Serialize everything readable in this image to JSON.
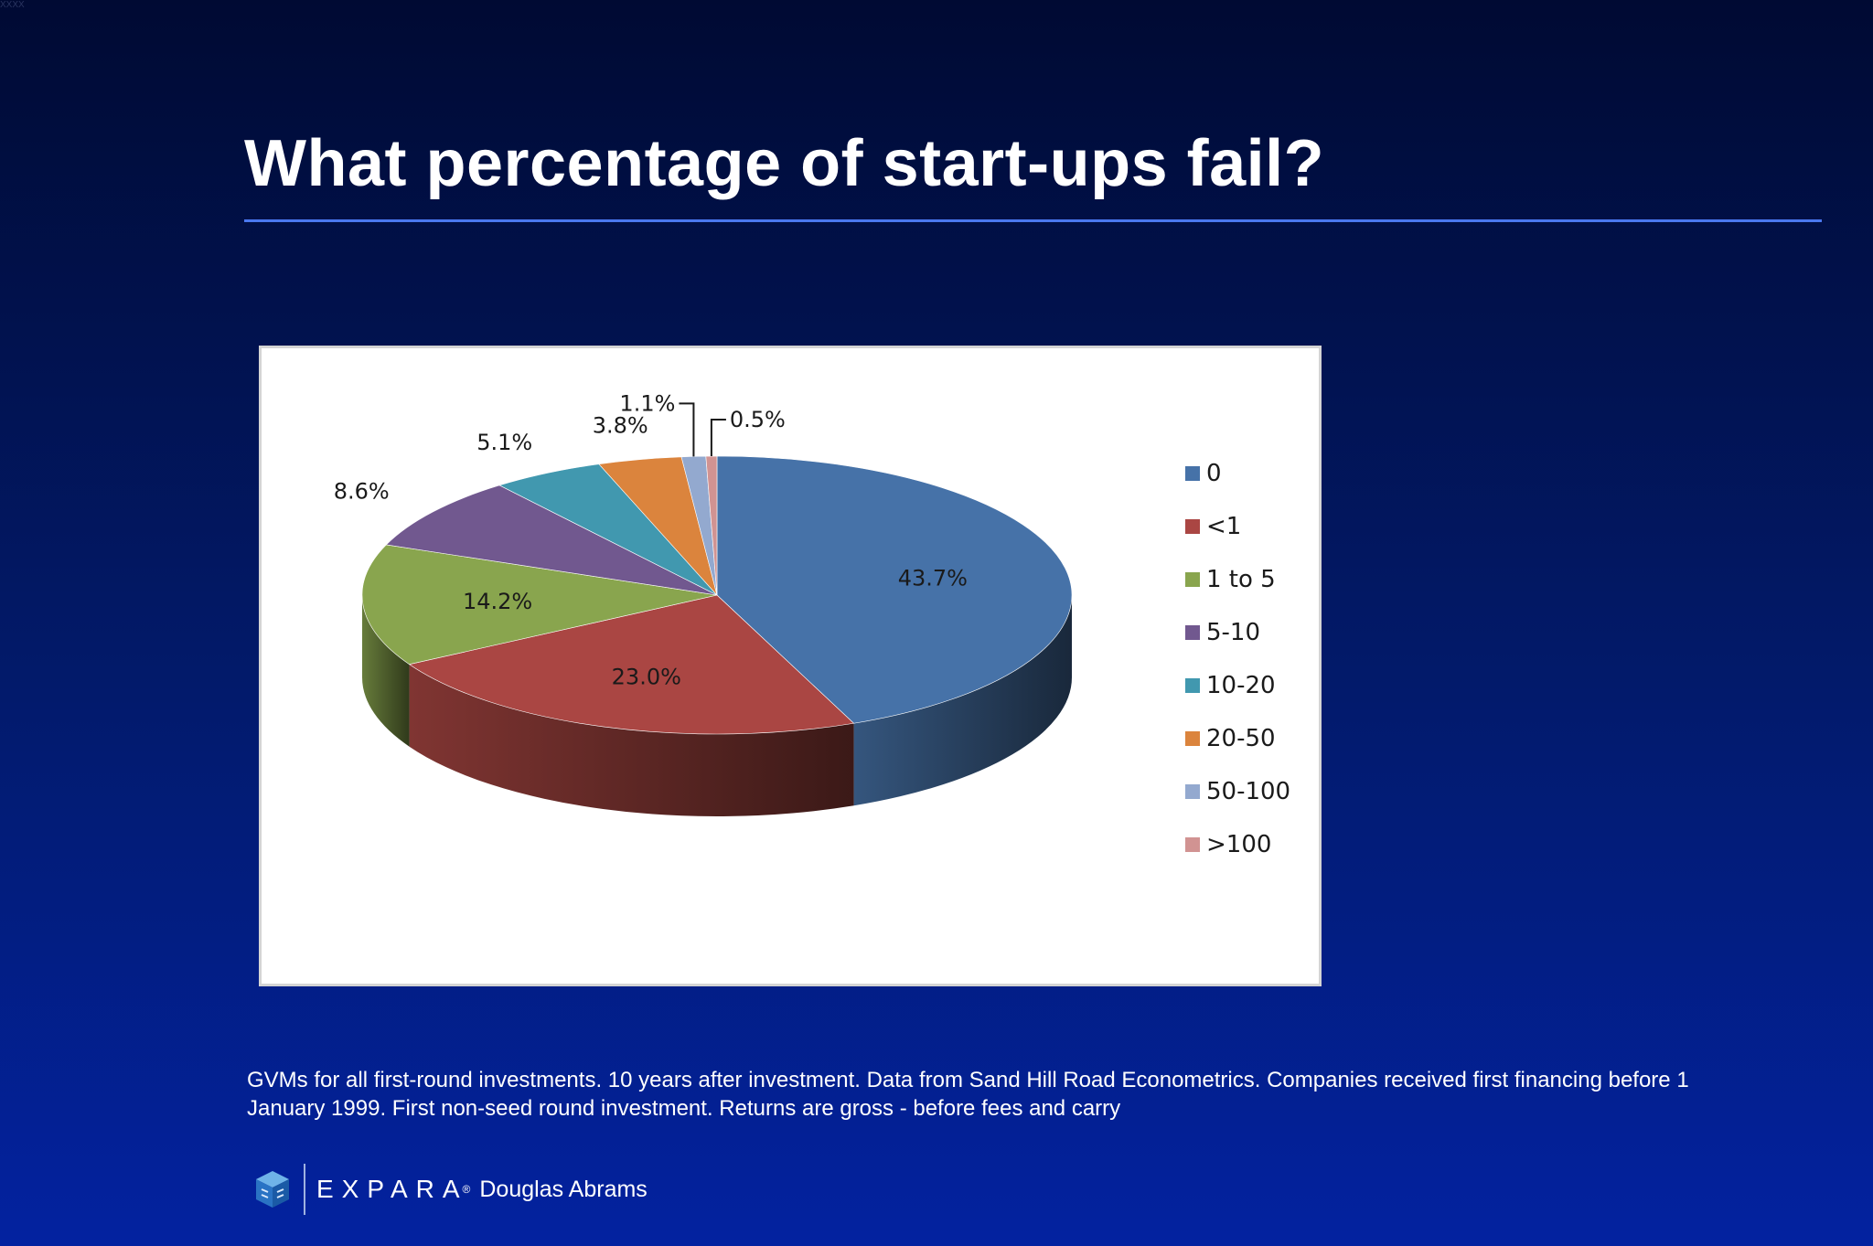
{
  "corner_mark": "XXXX",
  "slide": {
    "title": "What percentage of start-ups fail?",
    "footnote": "GVMs for all first-round investments. 10 years after investment. Data from Sand Hill Road Econometrics. Companies received first financing before 1 January 1999. First non-seed round investment. Returns are gross - before fees and carry"
  },
  "footer": {
    "brand": "EXPARA",
    "brand_mark": "®",
    "author": "Douglas Abrams"
  },
  "chart_data": {
    "type": "pie",
    "title": "",
    "style": "3d",
    "legend_position": "right",
    "categories": [
      "0",
      "<1",
      "1 to 5",
      "5-10",
      "10-20",
      "20-50",
      "50-100",
      ">100"
    ],
    "values": [
      43.7,
      23.0,
      14.2,
      8.6,
      5.1,
      3.8,
      1.1,
      0.5
    ],
    "labels": [
      "43.7%",
      "23.0%",
      "14.2%",
      "8.6%",
      "5.1%",
      "3.8%",
      "1.1%",
      "0.5%"
    ],
    "colors": [
      "#4672a8",
      "#aa4643",
      "#89a54e",
      "#71588f",
      "#4198af",
      "#db843d",
      "#93a9cf",
      "#d19392"
    ]
  }
}
